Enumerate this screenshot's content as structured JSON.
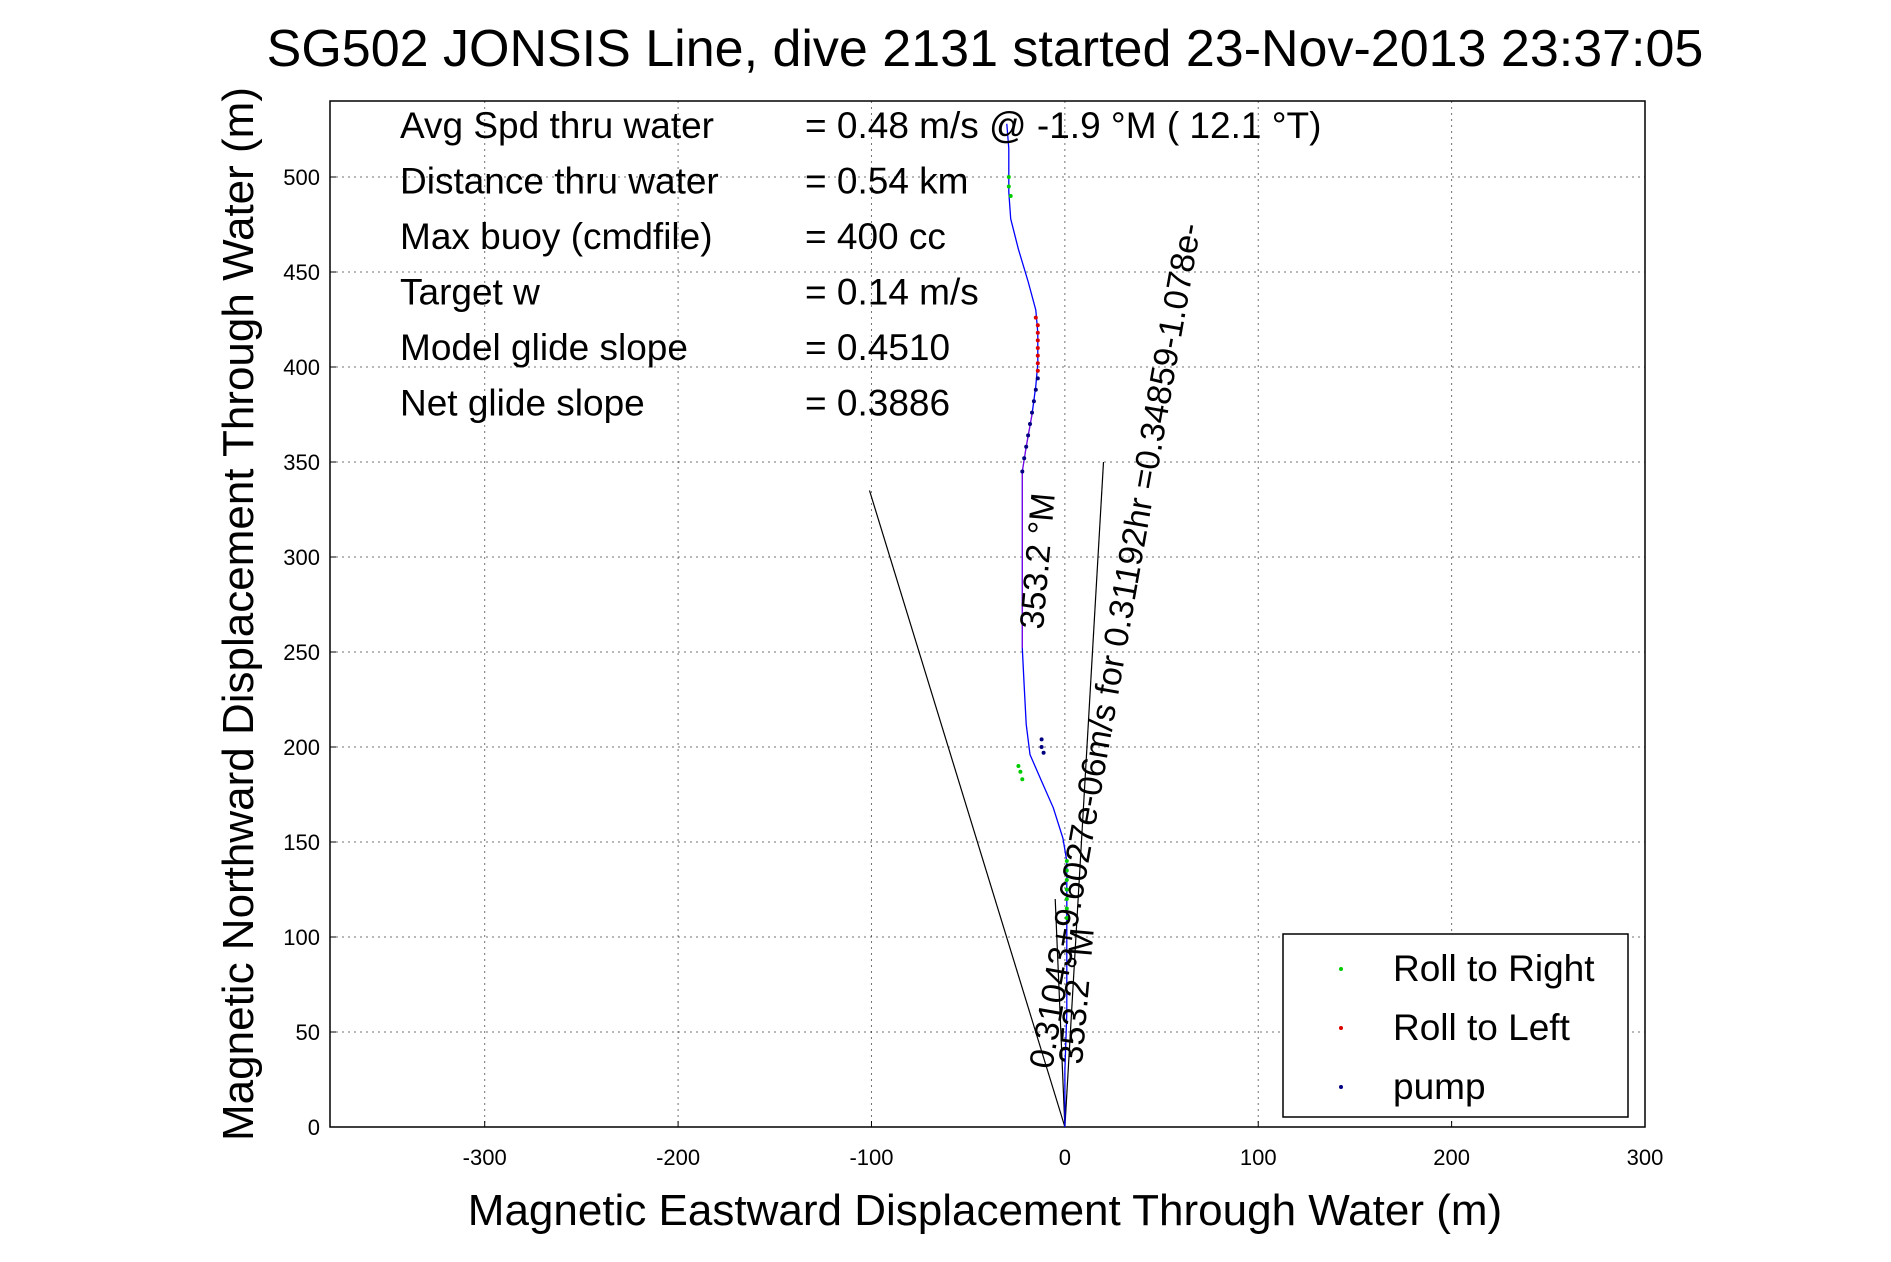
{
  "chart_data": {
    "type": "scatter",
    "title": "SG502 JONSIS Line, dive 2131 started 23-Nov-2013 23:37:05",
    "xlabel": "Magnetic Eastward Displacement Through Water (m)",
    "ylabel": "Magnetic Northward Displacement Through Water (m)",
    "xlim": [
      -380,
      300
    ],
    "ylim": [
      0,
      540
    ],
    "xticks": [
      -300,
      -200,
      -100,
      0,
      100,
      200,
      300
    ],
    "yticks": [
      0,
      50,
      100,
      150,
      200,
      250,
      300,
      350,
      400,
      450,
      500
    ],
    "grid": true,
    "legend_position": "bottom-right",
    "stats": [
      {
        "label": "Avg Spd thru water",
        "value": "=  0.48 m/s @  -1.9 °M ( 12.1 °T)"
      },
      {
        "label": "Distance thru water",
        "value": "=  0.54 km"
      },
      {
        "label": "Max buoy (cmdfile)",
        "value": "= 400 cc"
      },
      {
        "label": "Target w",
        "value": "= 0.14 m/s"
      },
      {
        "label": "Model glide slope",
        "value": "= 0.4510"
      },
      {
        "label": "Net glide slope",
        "value": "= 0.3886"
      }
    ],
    "series": [
      {
        "name": "Roll to Right",
        "color": "#00cc00",
        "points": [
          [
            1,
            110
          ],
          [
            1,
            115
          ],
          [
            1,
            120
          ],
          [
            1,
            125
          ],
          [
            1,
            130
          ],
          [
            1,
            135
          ],
          [
            1,
            140
          ],
          [
            -22,
            183
          ],
          [
            -23,
            187
          ],
          [
            -24,
            190
          ],
          [
            -28,
            490
          ],
          [
            -29,
            495
          ],
          [
            -29,
            500
          ]
        ]
      },
      {
        "name": "Roll to Left",
        "color": "#dd0000",
        "points": [
          [
            -14,
            398
          ],
          [
            -14,
            402
          ],
          [
            -14,
            406
          ],
          [
            -14,
            410
          ],
          [
            -14,
            414
          ],
          [
            -14,
            418
          ],
          [
            -14,
            422
          ],
          [
            -15,
            426
          ]
        ]
      },
      {
        "name": "pump",
        "color": "#000080",
        "points": [
          [
            -22,
            345
          ],
          [
            -21,
            352
          ],
          [
            -20,
            358
          ],
          [
            -19,
            364
          ],
          [
            -18,
            370
          ],
          [
            -17,
            376
          ],
          [
            -16,
            382
          ],
          [
            -15,
            388
          ],
          [
            -14,
            394
          ],
          [
            -12,
            200
          ],
          [
            -11,
            197
          ],
          [
            -12,
            204
          ]
        ]
      }
    ],
    "track": {
      "color": "#0000ff",
      "points": [
        [
          0,
          0
        ],
        [
          0,
          30
        ],
        [
          1,
          60
        ],
        [
          1,
          90
        ],
        [
          1,
          120
        ],
        [
          1,
          140
        ],
        [
          -1,
          152
        ],
        [
          -6,
          168
        ],
        [
          -12,
          182
        ],
        [
          -18,
          196
        ],
        [
          -20,
          212
        ],
        [
          -21,
          232
        ],
        [
          -22,
          252
        ],
        [
          -22,
          275
        ],
        [
          -22,
          300
        ],
        [
          -22,
          325
        ],
        [
          -22,
          345
        ],
        [
          -20,
          358
        ],
        [
          -17,
          375
        ],
        [
          -15,
          390
        ],
        [
          -14,
          402
        ],
        [
          -14,
          418
        ],
        [
          -15,
          430
        ],
        [
          -19,
          445
        ],
        [
          -24,
          462
        ],
        [
          -28,
          478
        ],
        [
          -29,
          492
        ],
        [
          -29,
          505
        ],
        [
          -29,
          515
        ],
        [
          -30,
          528
        ]
      ]
    },
    "track2": {
      "color": "#cc00cc",
      "points": [
        [
          -22,
          252
        ],
        [
          -22,
          275
        ],
        [
          -22,
          300
        ],
        [
          -22,
          325
        ],
        [
          -22,
          345
        ],
        [
          -20,
          358
        ],
        [
          -17,
          375
        ]
      ]
    },
    "wedge_lines": [
      {
        "points": [
          [
            0,
            0
          ],
          [
            -101,
            335
          ]
        ]
      },
      {
        "points": [
          [
            0,
            0
          ],
          [
            20,
            350
          ]
        ]
      },
      {
        "points": [
          [
            0,
            0
          ],
          [
            -5,
            120
          ]
        ]
      }
    ],
    "annotations": [
      "0.31043+9.6027e-06m/s for 0.31192hr =0.34859-1.078e-",
      "353.2 °M",
      "353.2 °M"
    ]
  }
}
